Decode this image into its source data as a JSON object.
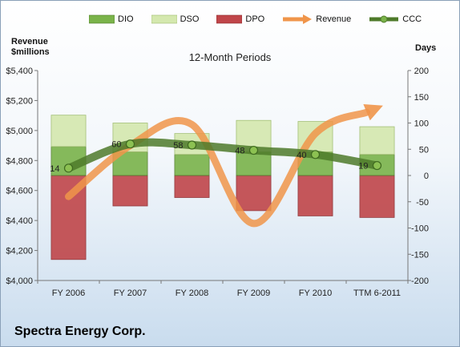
{
  "company": "Spectra Energy Corp.",
  "chart_data": {
    "type": "bar",
    "title": "12-Month Periods",
    "y_left_label": [
      "Revenue",
      "$millions"
    ],
    "y_right_label": "Days",
    "categories": [
      "FY 2006",
      "FY 2007",
      "FY 2008",
      "FY 2009",
      "FY 2010",
      "TTM 6-2011"
    ],
    "ylim_left": [
      4000,
      5400
    ],
    "ylim_right": [
      -200,
      200
    ],
    "left_ticks": [
      "$4,000",
      "$4,200",
      "$4,400",
      "$4,600",
      "$4,800",
      "$5,000",
      "$5,200",
      "$5,400"
    ],
    "right_ticks": [
      "-200",
      "-150",
      "-100",
      "-50",
      "0",
      "50",
      "100",
      "150",
      "200"
    ],
    "legend": [
      "DIO",
      "DSO",
      "DPO",
      "Revenue",
      "CCC"
    ],
    "legend_position": "top",
    "series": [
      {
        "name": "DIO",
        "axis": "right",
        "color": "#7ab34a",
        "values": [
          55,
          45,
          40,
          45,
          45,
          40
        ]
      },
      {
        "name": "DSO",
        "axis": "right",
        "color": "#d4e8ae",
        "values": [
          60,
          55,
          40,
          60,
          58,
          53
        ]
      },
      {
        "name": "DPO",
        "axis": "right",
        "color": "#c0464a",
        "values": [
          -160,
          -58,
          -42,
          -67,
          -77,
          -80
        ]
      },
      {
        "name": "Revenue",
        "axis": "left",
        "color": "#f0954a",
        "values": [
          4560,
          4900,
          5040,
          4380,
          4980,
          5150
        ]
      },
      {
        "name": "CCC",
        "axis": "right",
        "color": "#4e7a2a",
        "values": [
          14,
          60,
          58,
          48,
          40,
          19
        ],
        "labels": [
          "14",
          "60",
          "58",
          "48",
          "40",
          "19"
        ]
      }
    ]
  }
}
